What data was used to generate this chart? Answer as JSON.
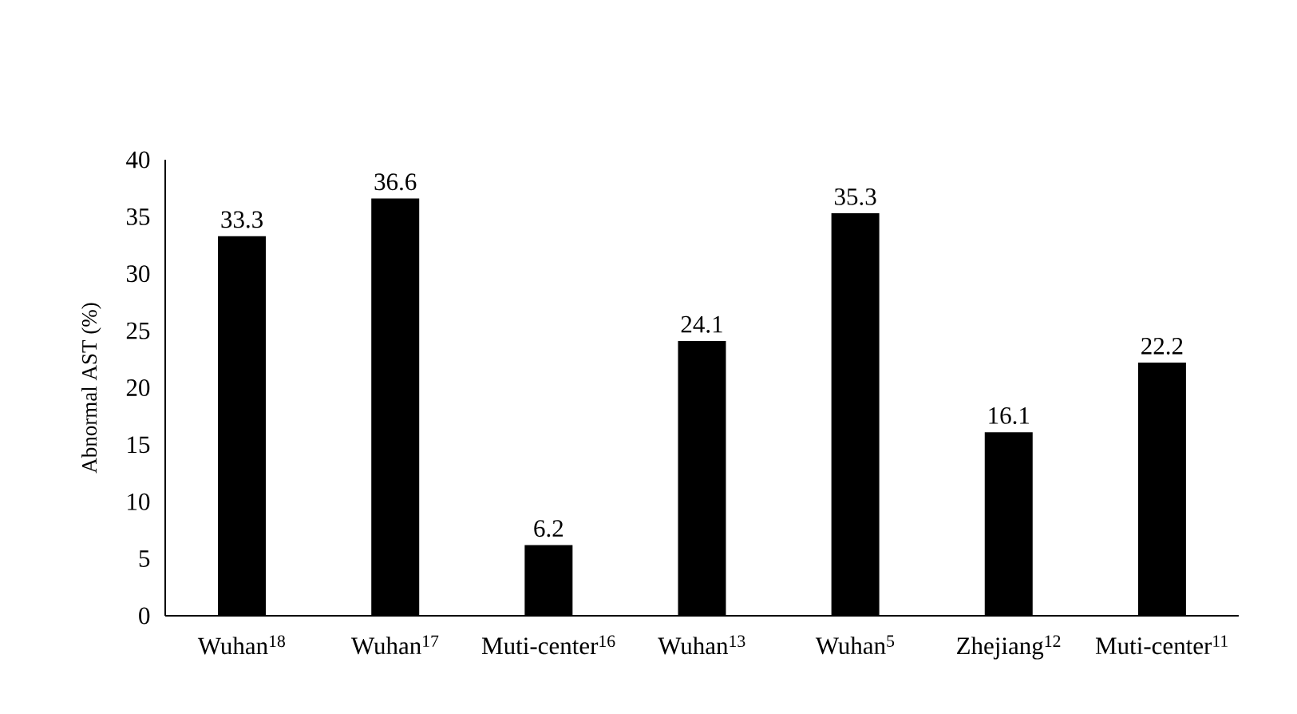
{
  "chart_data": {
    "type": "bar",
    "ylabel": "Abnormal AST (%)",
    "categories": [
      "Wuhan$^{18}$",
      "Wuhan$^{17}$",
      "Muti-center$^{16}$",
      "Wuhan$^{13}$",
      "Wuhan$^{5}$",
      "Zhejiang$^{12}$",
      "Muti-center$^{11}$"
    ],
    "values": [
      33.3,
      36.6,
      6.2,
      24.1,
      35.3,
      16.1,
      22.2
    ],
    "color": "#000000",
    "ylim": [
      0,
      40
    ],
    "yticks": [
      0,
      5,
      10,
      15,
      20,
      25,
      30,
      35,
      40
    ],
    "data_labels": true,
    "grid": false
  }
}
